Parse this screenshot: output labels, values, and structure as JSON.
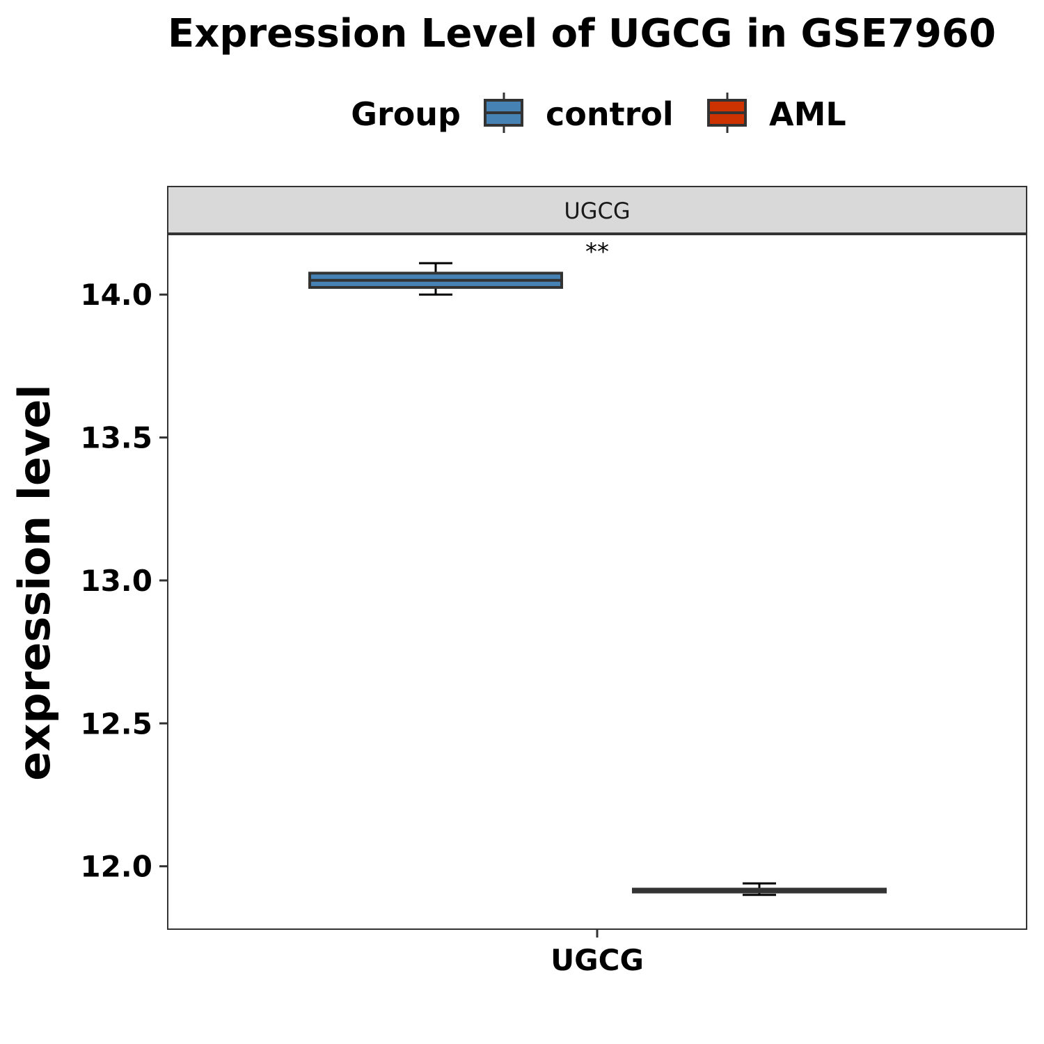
{
  "chart_data": {
    "type": "box",
    "title": "Expression Level of UGCG in GSE7960",
    "ylabel": "expression level",
    "xlabel": "",
    "categories": [
      "UGCG"
    ],
    "facet_label": "UGCG",
    "ylim": [
      11.78,
      14.21
    ],
    "yticks": [
      12.0,
      12.5,
      13.0,
      13.5,
      14.0
    ],
    "ytick_labels": [
      "12.0",
      "12.5",
      "13.0",
      "13.5",
      "14.0"
    ],
    "grid": false,
    "legend": {
      "title": "Group",
      "position": "top",
      "entries": [
        {
          "label": "control",
          "color": "#4682B4"
        },
        {
          "label": "AML",
          "color": "#CC3300"
        }
      ]
    },
    "series": [
      {
        "name": "control",
        "color": "#4682B4",
        "box": {
          "whisker_low": 14.0,
          "q1": 14.025,
          "median": 14.05,
          "q3": 14.075,
          "whisker_high": 14.11
        }
      },
      {
        "name": "AML",
        "color": "#CC3300",
        "box": {
          "whisker_low": 11.9,
          "q1": 11.91,
          "median": 11.915,
          "q3": 11.92,
          "whisker_high": 11.94
        }
      }
    ],
    "annotation": "**"
  }
}
